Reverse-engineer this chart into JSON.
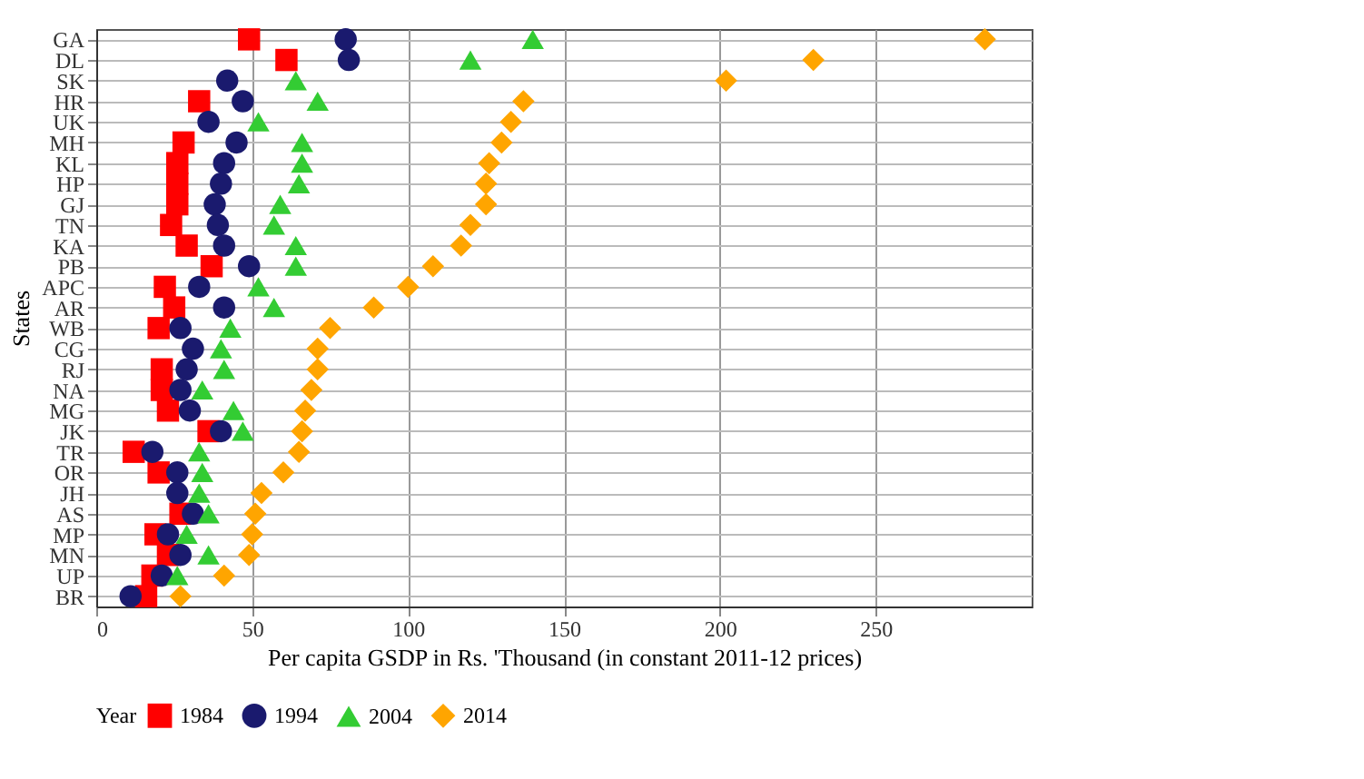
{
  "chart_data": {
    "type": "scatter",
    "orientation": "horizontal",
    "xlabel": "Per capita GSDP in Rs. 'Thousand (in constant 2011-12 prices)",
    "ylabel": "States",
    "legend_title": "Year",
    "legend": "bottom",
    "grid": true,
    "categories": [
      "GA",
      "DL",
      "SK",
      "HR",
      "UK",
      "MH",
      "KL",
      "HP",
      "GJ",
      "TN",
      "KA",
      "PB",
      "APC",
      "AR",
      "WB",
      "CG",
      "RJ",
      "NA",
      "MG",
      "JK",
      "TR",
      "OR",
      "JH",
      "AS",
      "MP",
      "MN",
      "UP",
      "BR"
    ],
    "xlim": [
      0,
      300
    ],
    "xticks": [
      0,
      50,
      100,
      150,
      200,
      250
    ],
    "series": [
      {
        "name": "1984",
        "color": "#ff0000",
        "marker": "square",
        "values": [
          49,
          61,
          null,
          33,
          null,
          28,
          26,
          26,
          26,
          24,
          29,
          37,
          22,
          25,
          20,
          null,
          21,
          21,
          23,
          36,
          12,
          20,
          null,
          27,
          19,
          23,
          18,
          16
        ]
      },
      {
        "name": "1994",
        "color": "#1a1a6e",
        "marker": "circle",
        "values": [
          80,
          81,
          42,
          47,
          36,
          45,
          41,
          40,
          38,
          39,
          41,
          49,
          33,
          41,
          27,
          31,
          29,
          27,
          30,
          40,
          18,
          26,
          26,
          31,
          23,
          27,
          21,
          11
        ]
      },
      {
        "name": "2004",
        "color": "#33cc33",
        "marker": "triangle",
        "values": [
          140,
          120,
          64,
          71,
          52,
          66,
          66,
          65,
          59,
          57,
          64,
          64,
          52,
          57,
          43,
          40,
          41,
          34,
          44,
          47,
          33,
          34,
          33,
          36,
          29,
          36,
          26,
          null
        ]
      },
      {
        "name": "2014",
        "color": "#ffa500",
        "marker": "diamond",
        "values": [
          285,
          230,
          202,
          137,
          133,
          130,
          126,
          125,
          125,
          120,
          117,
          108,
          100,
          89,
          75,
          71,
          71,
          69,
          67,
          66,
          65,
          60,
          53,
          51,
          50,
          49,
          41,
          27
        ]
      }
    ]
  }
}
